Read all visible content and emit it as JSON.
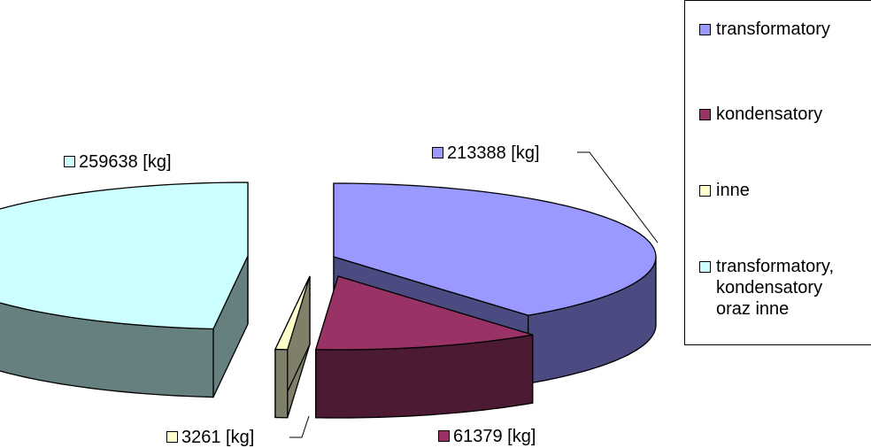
{
  "chart_data": {
    "type": "pie",
    "style": "3d-exploded",
    "title": "",
    "unit": "[kg]",
    "slices": [
      {
        "label": "transformatory",
        "value": 213388,
        "data_label": "213388 [kg]",
        "color": "#9999FF",
        "side_color": "#4B4B82"
      },
      {
        "label": "kondensatory",
        "value": 61379,
        "data_label": "61379 [kg]",
        "color": "#993366",
        "side_color": "#4D1A33"
      },
      {
        "label": "inne",
        "value": 3261,
        "data_label": "3261 [kg]",
        "color": "#FFFFCC",
        "side_color": "#80806A"
      },
      {
        "label": "transformatory, kondensatory oraz inne",
        "value": 259638,
        "data_label": "259638 [kg]",
        "color": "#CCFFFF",
        "side_color": "#668080"
      }
    ],
    "legend_position": "right",
    "grid": false
  }
}
